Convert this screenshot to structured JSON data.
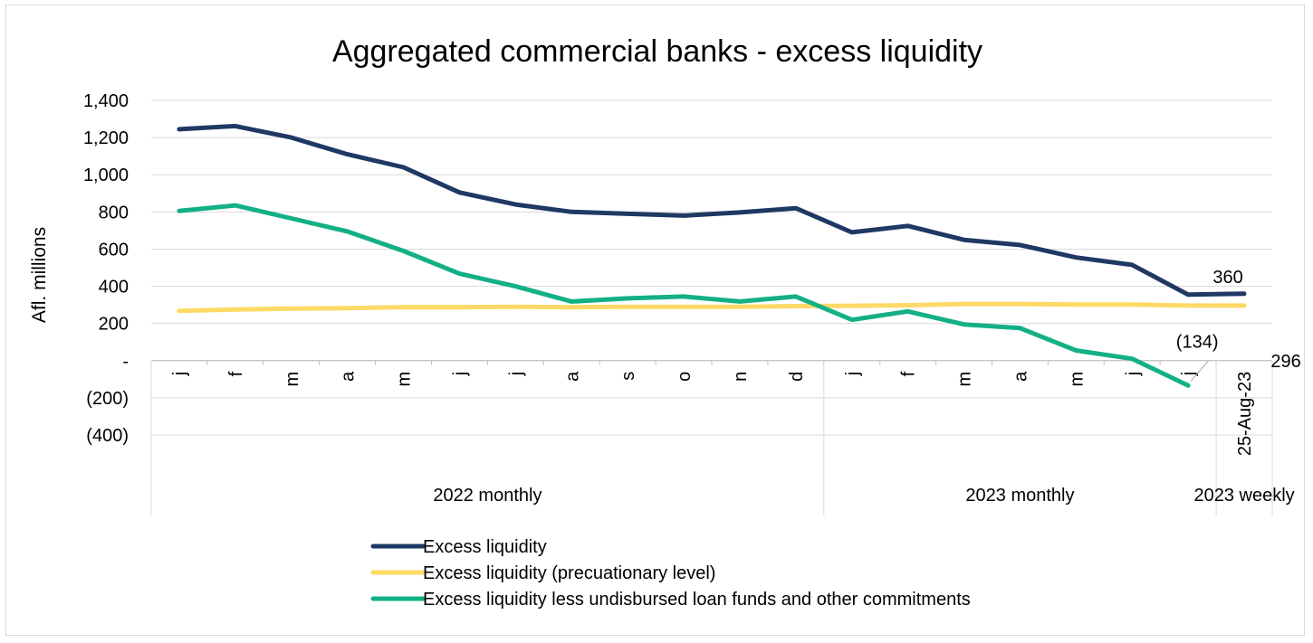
{
  "chart_data": {
    "type": "line",
    "title": "Aggregated commercial banks - excess liquidity",
    "ylabel": "Afl. millions",
    "ylim": [
      -400,
      1400
    ],
    "y_ticks": [
      {
        "value": 1400,
        "label": "1,400"
      },
      {
        "value": 1200,
        "label": "1,200"
      },
      {
        "value": 1000,
        "label": "1,000"
      },
      {
        "value": 800,
        "label": "800"
      },
      {
        "value": 600,
        "label": "600"
      },
      {
        "value": 400,
        "label": "400"
      },
      {
        "value": 200,
        "label": "200"
      },
      {
        "value": 0,
        "label": "-"
      },
      {
        "value": -200,
        "label": "(200)"
      },
      {
        "value": -400,
        "label": "(400)"
      }
    ],
    "categories": [
      "j",
      "f",
      "m",
      "a",
      "m",
      "j",
      "j",
      "a",
      "s",
      "o",
      "n",
      "d",
      "j",
      "f",
      "m",
      "a",
      "m",
      "j",
      "j",
      "25-Aug-23"
    ],
    "groups": [
      {
        "label": "2022 monthly",
        "start": 0,
        "end": 11
      },
      {
        "label": "2023 monthly",
        "start": 12,
        "end": 18
      },
      {
        "label": "2023 weekly",
        "start": 19,
        "end": 19
      }
    ],
    "grid": true,
    "legend_position": "bottom",
    "series": [
      {
        "name": "Excess liquidity",
        "color": "#1f3864",
        "values": [
          1245,
          1262,
          1200,
          1110,
          1040,
          905,
          840,
          800,
          790,
          780,
          797,
          820,
          690,
          725,
          650,
          622,
          555,
          515,
          355,
          360
        ]
      },
      {
        "name": "Excess liquidity (precuationary level)",
        "color": "#ffd966",
        "values": [
          268,
          275,
          280,
          282,
          288,
          288,
          290,
          288,
          290,
          290,
          290,
          293,
          295,
          298,
          305,
          305,
          302,
          302,
          296,
          296
        ]
      },
      {
        "name": "Excess liquidity less undisbursed loan funds and other commitments",
        "color": "#13b085",
        "values": [
          805,
          835,
          765,
          695,
          590,
          468,
          400,
          318,
          335,
          345,
          318,
          345,
          220,
          265,
          195,
          175,
          55,
          10,
          -134,
          null
        ]
      }
    ],
    "data_labels": [
      {
        "series": 0,
        "index": 19,
        "text": "360"
      },
      {
        "series": 1,
        "index": 19,
        "text": "296"
      },
      {
        "series": 2,
        "index": 18,
        "text": "(134)"
      }
    ]
  }
}
